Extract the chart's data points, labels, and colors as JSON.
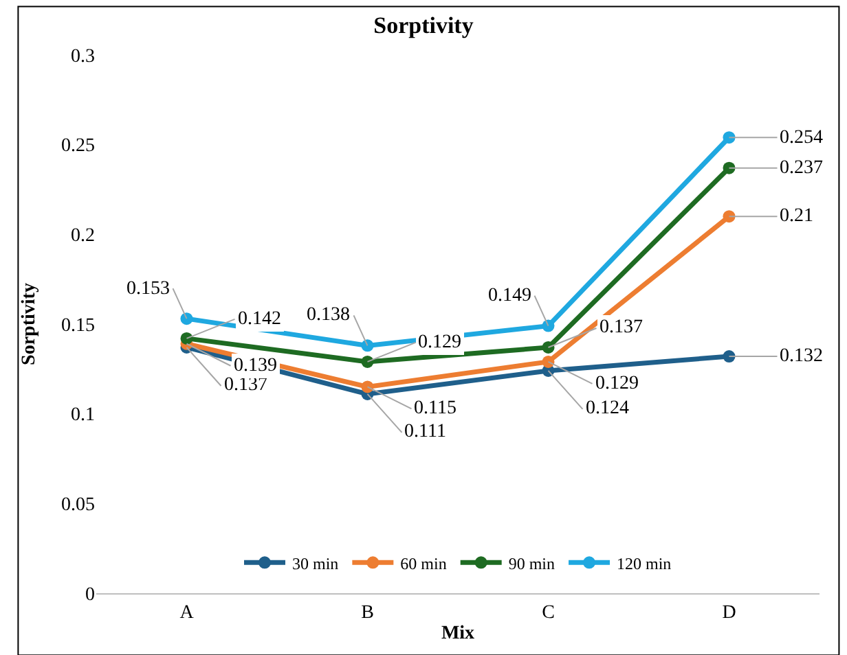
{
  "chart_data": {
    "type": "line",
    "title": "Sorptivity",
    "xlabel": "Mix",
    "ylabel": "Sorptivity",
    "categories": [
      "A",
      "B",
      "C",
      "D"
    ],
    "series": [
      {
        "name": "30 min",
        "color": "#1f5f8b",
        "values": [
          0.137,
          0.111,
          0.124,
          0.132
        ]
      },
      {
        "name": "60 min",
        "color": "#ed7d31",
        "values": [
          0.139,
          0.115,
          0.129,
          0.21
        ]
      },
      {
        "name": "90 min",
        "color": "#1e6b22",
        "values": [
          0.142,
          0.129,
          0.137,
          0.237
        ]
      },
      {
        "name": "120 min",
        "color": "#1fa8e0",
        "values": [
          0.153,
          0.138,
          0.149,
          0.254
        ]
      }
    ],
    "ylim": [
      0,
      0.3
    ],
    "yticks": [
      0,
      0.05,
      0.1,
      0.15,
      0.2,
      0.25,
      0.3
    ],
    "legend": "bottom",
    "marker": "circle",
    "line_style": "solid",
    "data_labels": true
  }
}
